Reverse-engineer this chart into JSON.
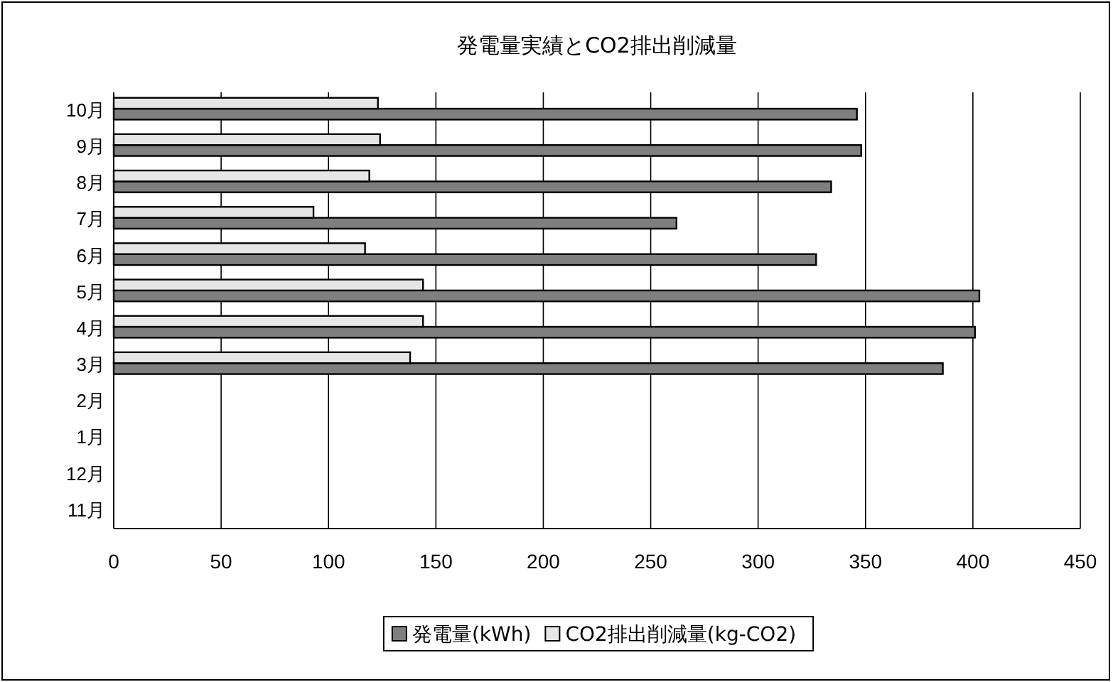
{
  "chart_data": {
    "type": "bar",
    "orientation": "horizontal",
    "title": "発電量実績とCO2排出削減量",
    "categories": [
      "10月",
      "9月",
      "8月",
      "7月",
      "6月",
      "5月",
      "4月",
      "3月",
      "2月",
      "1月",
      "12月",
      "11月"
    ],
    "series": [
      {
        "name": "発電量(kWh)",
        "color": "#7f7f7f",
        "values": [
          346,
          348,
          334,
          262,
          327,
          403,
          401,
          386,
          null,
          null,
          null,
          null
        ]
      },
      {
        "name": "CO2排出削減量(kg-CO2)",
        "color": "#e6e6e6",
        "values": [
          123,
          124,
          119,
          93,
          117,
          144,
          144,
          138,
          null,
          null,
          null,
          null
        ]
      }
    ],
    "xlim": [
      0,
      450
    ],
    "xticks": [
      0,
      50,
      100,
      150,
      200,
      250,
      300,
      350,
      400,
      450
    ],
    "grid": "x",
    "legend": "bottom"
  }
}
